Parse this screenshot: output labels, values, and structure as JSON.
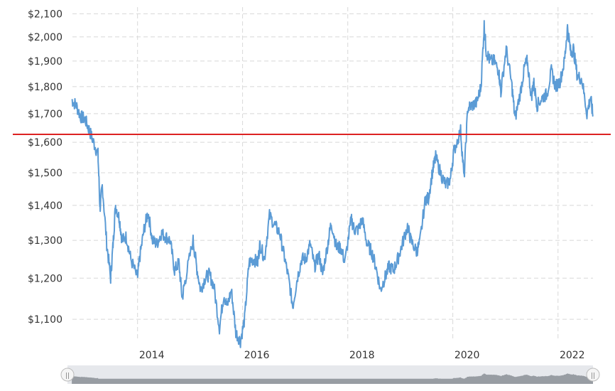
{
  "chart_data": {
    "type": "line",
    "title": "",
    "xlabel": "",
    "ylabel": "",
    "y_scale": "log",
    "ylim": [
      1050,
      2130
    ],
    "xlim": [
      "2012-09",
      "2022-09"
    ],
    "grid": true,
    "y_ticks": [
      "$2,100",
      "$2,000",
      "$1,900",
      "$1,800",
      "$1,700",
      "$1,600",
      "$1,500",
      "$1,400",
      "$1,300",
      "$1,200",
      "$1,100"
    ],
    "y_tick_values": [
      2100,
      2000,
      1900,
      1800,
      1700,
      1600,
      1500,
      1400,
      1300,
      1200,
      1100
    ],
    "x_ticks": [
      "2014",
      "2016",
      "2018",
      "2020",
      "2022"
    ],
    "x_tick_values": [
      "2014-01-01",
      "2016-01-01",
      "2018-01-01",
      "2020-01-01",
      "2022-01-01"
    ],
    "reference_line": {
      "value": 1627,
      "color": "#dd2222"
    },
    "series_color": "#5b9bd5",
    "series": [
      {
        "x": [
          "2012-10-01",
          "2012-11-01",
          "2012-12-01",
          "2013-01-01",
          "2013-02-01",
          "2013-03-01",
          "2013-04-01",
          "2013-04-15",
          "2013-05-01",
          "2013-06-01",
          "2013-06-28",
          "2013-07-15",
          "2013-08-01",
          "2013-08-28",
          "2013-09-15",
          "2013-10-15",
          "2013-11-15",
          "2013-12-31",
          "2014-01-15",
          "2014-02-15",
          "2014-03-15",
          "2014-04-15",
          "2014-05-15",
          "2014-06-15",
          "2014-07-15",
          "2014-08-15",
          "2014-09-15",
          "2014-10-15",
          "2014-11-07",
          "2014-12-01",
          "2015-01-22",
          "2015-02-15",
          "2015-03-15",
          "2015-04-15",
          "2015-05-15",
          "2015-06-15",
          "2015-07-24",
          "2015-08-24",
          "2015-09-15",
          "2015-10-15",
          "2015-11-15",
          "2015-12-17",
          "2016-01-15",
          "2016-02-15",
          "2016-03-15",
          "2016-04-15",
          "2016-05-01",
          "2016-06-01",
          "2016-07-06",
          "2016-08-15",
          "2016-09-15",
          "2016-10-15",
          "2016-11-15",
          "2016-12-15",
          "2017-01-15",
          "2017-02-15",
          "2017-03-15",
          "2017-04-15",
          "2017-05-15",
          "2017-06-15",
          "2017-07-10",
          "2017-08-15",
          "2017-09-08",
          "2017-10-15",
          "2017-11-15",
          "2017-12-12",
          "2018-01-25",
          "2018-02-15",
          "2018-03-15",
          "2018-04-11",
          "2018-05-15",
          "2018-06-15",
          "2018-07-15",
          "2018-08-16",
          "2018-09-15",
          "2018-10-15",
          "2018-11-15",
          "2018-12-15",
          "2019-01-15",
          "2019-02-20",
          "2019-03-15",
          "2019-04-23",
          "2019-05-15",
          "2019-06-25",
          "2019-07-15",
          "2019-08-15",
          "2019-09-04",
          "2019-10-15",
          "2019-11-15",
          "2019-12-15",
          "2020-01-08",
          "2020-02-24",
          "2020-03-19",
          "2020-04-14",
          "2020-05-15",
          "2020-06-15",
          "2020-07-15",
          "2020-08-06",
          "2020-08-20",
          "2020-09-15",
          "2020-10-15",
          "2020-11-15",
          "2020-11-30",
          "2021-01-06",
          "2021-02-15",
          "2021-03-08",
          "2021-04-15",
          "2021-05-15",
          "2021-06-01",
          "2021-06-30",
          "2021-07-15",
          "2021-08-09",
          "2021-09-15",
          "2021-10-15",
          "2021-11-16",
          "2021-12-15",
          "2022-01-15",
          "2022-02-15",
          "2022-03-08",
          "2022-03-31",
          "2022-04-18",
          "2022-05-15",
          "2022-06-15",
          "2022-07-21",
          "2022-08-15",
          "2022-09-01"
        ],
        "values": [
          1750,
          1730,
          1690,
          1680,
          1640,
          1600,
          1560,
          1390,
          1460,
          1290,
          1200,
          1290,
          1400,
          1360,
          1300,
          1310,
          1250,
          1200,
          1250,
          1330,
          1380,
          1300,
          1290,
          1320,
          1310,
          1300,
          1220,
          1240,
          1150,
          1200,
          1300,
          1230,
          1170,
          1200,
          1210,
          1180,
          1080,
          1160,
          1130,
          1170,
          1070,
          1050,
          1100,
          1240,
          1250,
          1240,
          1290,
          1250,
          1370,
          1340,
          1320,
          1260,
          1200,
          1130,
          1200,
          1250,
          1250,
          1290,
          1230,
          1260,
          1210,
          1290,
          1350,
          1280,
          1280,
          1240,
          1360,
          1330,
          1330,
          1360,
          1290,
          1270,
          1230,
          1170,
          1200,
          1230,
          1220,
          1250,
          1290,
          1340,
          1300,
          1270,
          1290,
          1420,
          1420,
          1510,
          1550,
          1490,
          1460,
          1480,
          1570,
          1640,
          1480,
          1720,
          1730,
          1740,
          1800,
          2050,
          1940,
          1900,
          1900,
          1860,
          1780,
          1950,
          1800,
          1680,
          1780,
          1880,
          1900,
          1760,
          1820,
          1730,
          1760,
          1770,
          1860,
          1800,
          1820,
          1900,
          2040,
          1930,
          1950,
          1840,
          1830,
          1700,
          1760,
          1690
        ]
      }
    ]
  },
  "navigator": {
    "left_handle": "||",
    "right_handle": "||"
  }
}
